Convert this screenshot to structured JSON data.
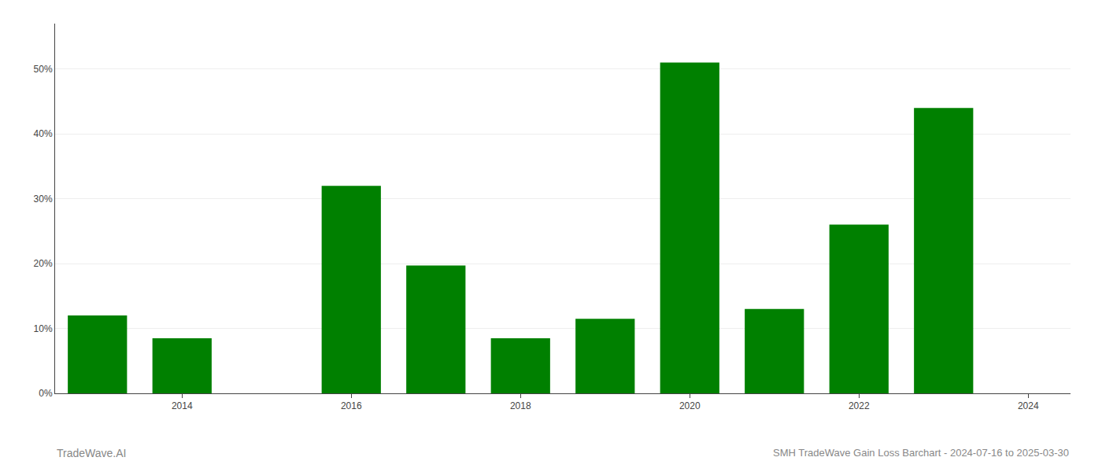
{
  "chart_data": {
    "type": "bar",
    "title": "SMH TradeWave Gain Loss Barchart - 2024-07-16 to 2025-03-30",
    "annotations": [
      "TradeWave.AI"
    ],
    "x": [
      2013,
      2014,
      2016,
      2017,
      2018,
      2019,
      2020,
      2021,
      2022,
      2023
    ],
    "values": [
      0.12,
      0.085,
      0.32,
      0.197,
      0.085,
      0.115,
      0.51,
      0.13,
      0.26,
      0.44
    ],
    "color": "#008000",
    "xlim": [
      2012.5,
      2024.5
    ],
    "xticks": [
      2014,
      2016,
      2018,
      2020,
      2022,
      2024
    ],
    "ylim": [
      0,
      0.57
    ],
    "yticks": [
      {
        "value": 0.0,
        "label": "0%"
      },
      {
        "value": 0.1,
        "label": "10%"
      },
      {
        "value": 0.2,
        "label": "20%"
      },
      {
        "value": 0.3,
        "label": "30%"
      },
      {
        "value": 0.4,
        "label": "40%"
      },
      {
        "value": 0.5,
        "label": "50%"
      }
    ],
    "grid": "y"
  }
}
